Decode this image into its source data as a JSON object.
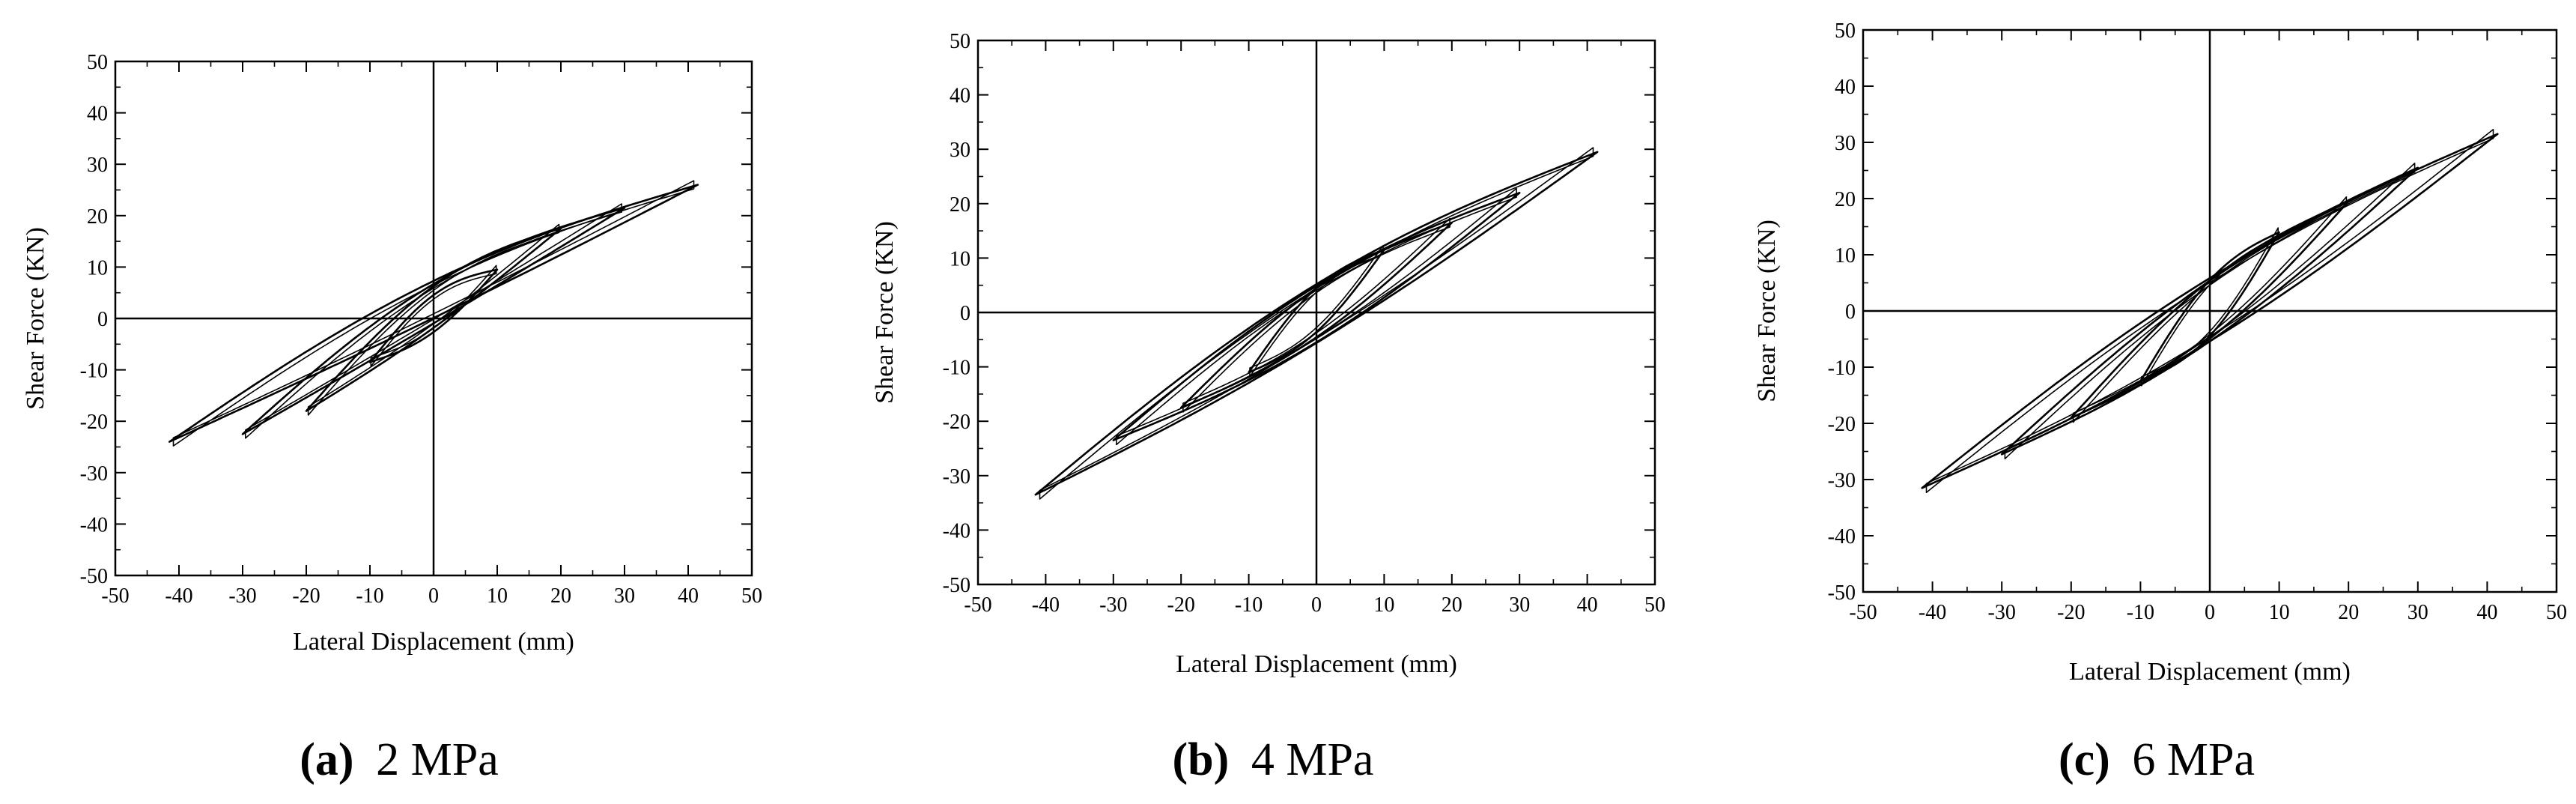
{
  "figure": "Hysteresis curves of shear force versus lateral displacement",
  "chart_data": [
    {
      "type": "line",
      "id": "a",
      "caption_letter": "(a)",
      "caption_text": "2 MPa",
      "xlabel": "Lateral Displacement (mm)",
      "ylabel": "Shear Force (KN)",
      "xlim": [
        -50,
        50
      ],
      "ylim": [
        -50,
        50
      ],
      "xticks": [
        -50,
        -40,
        -30,
        -20,
        -10,
        0,
        10,
        20,
        30,
        40,
        50
      ],
      "yticks": [
        -50,
        -40,
        -30,
        -20,
        -10,
        0,
        10,
        20,
        30,
        40,
        50
      ],
      "grid": false,
      "loops": [
        {
          "dmax": 10,
          "fpos": 9.5,
          "fneg": -8.5,
          "y0up": -3,
          "y0down": 5
        },
        {
          "dmax": 20,
          "fpos": 17.5,
          "fneg": -18,
          "y0up": -2,
          "y0down": 7
        },
        {
          "dmax": 30,
          "fpos": 21.5,
          "fneg": -22.5,
          "y0up": -1,
          "y0down": 7.5
        },
        {
          "dmax": 41.5,
          "fpos": 26,
          "fneg": -24,
          "y0up": 0,
          "y0down": 8
        }
      ]
    },
    {
      "type": "line",
      "id": "b",
      "caption_letter": "(b)",
      "caption_text": "4 MPa",
      "xlabel": "Lateral Displacement (mm)",
      "ylabel": "Shear Force (KN)",
      "xlim": [
        -50,
        50
      ],
      "ylim": [
        -50,
        50
      ],
      "xticks": [
        -50,
        -40,
        -30,
        -20,
        -10,
        0,
        10,
        20,
        30,
        40,
        50
      ],
      "yticks": [
        -50,
        -40,
        -30,
        -20,
        -10,
        0,
        10,
        20,
        30,
        40,
        50
      ],
      "grid": false,
      "loops": [
        {
          "dmax": 10,
          "fpos": 11.5,
          "fneg": -11,
          "y0up": -4,
          "y0down": 5
        },
        {
          "dmax": 20,
          "fpos": 16.5,
          "fneg": -17.5,
          "y0up": -5,
          "y0down": 5
        },
        {
          "dmax": 30,
          "fpos": 22,
          "fneg": -23.5,
          "y0up": -6,
          "y0down": 5.5
        },
        {
          "dmax": 41.5,
          "fpos": 29.5,
          "fneg": -33.5,
          "y0up": -6,
          "y0down": 6
        }
      ]
    },
    {
      "type": "line",
      "id": "c",
      "caption_letter": "(c)",
      "caption_text": "6 MPa",
      "xlabel": "Lateral Displacement (mm)",
      "ylabel": "Shear Force (KN)",
      "xlim": [
        -50,
        50
      ],
      "ylim": [
        -50,
        50
      ],
      "xticks": [
        -50,
        -40,
        -30,
        -20,
        -10,
        0,
        10,
        20,
        30,
        40,
        50
      ],
      "yticks": [
        -50,
        -40,
        -30,
        -20,
        -10,
        0,
        10,
        20,
        30,
        40,
        50
      ],
      "grid": false,
      "loops": [
        {
          "dmax": 10,
          "fpos": 14,
          "fneg": -12.5,
          "y0up": -5,
          "y0down": 6
        },
        {
          "dmax": 20,
          "fpos": 19.5,
          "fneg": -19,
          "y0up": -5.5,
          "y0down": 6
        },
        {
          "dmax": 30,
          "fpos": 25.5,
          "fneg": -25.5,
          "y0up": -6,
          "y0down": 6
        },
        {
          "dmax": 41.5,
          "fpos": 31.5,
          "fneg": -31.5,
          "y0up": -6,
          "y0down": 6.5
        }
      ]
    }
  ]
}
